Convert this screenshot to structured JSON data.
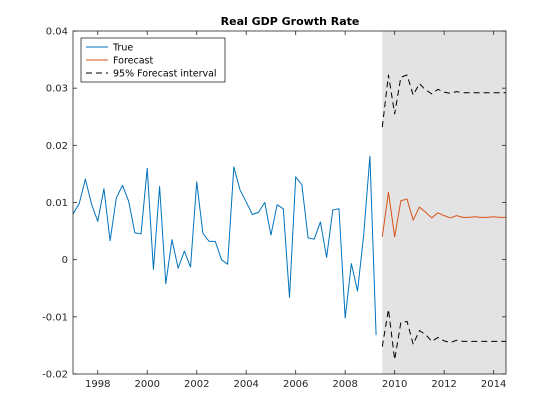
{
  "chart_data": {
    "type": "line",
    "title": "Real GDP Growth Rate",
    "xlabel": "",
    "ylabel": "",
    "xlim": [
      1997.0,
      2014.5
    ],
    "ylim": [
      -0.02,
      0.04
    ],
    "x_ticks": [
      1998,
      2000,
      2002,
      2004,
      2006,
      2008,
      2010,
      2012,
      2014
    ],
    "x_tick_labels": [
      "1998",
      "2000",
      "2002",
      "2004",
      "2006",
      "2008",
      "2010",
      "2012",
      "2014"
    ],
    "y_ticks": [
      -0.02,
      -0.01,
      0,
      0.01,
      0.02,
      0.03,
      0.04
    ],
    "y_tick_labels": [
      "-0.02",
      "-0.01",
      "0",
      "0.01",
      "0.02",
      "0.03",
      "0.04"
    ],
    "grid": false,
    "forecast_region": [
      2009.5,
      2014.5
    ],
    "legend": {
      "position": "top-left",
      "entries": [
        "True",
        "Forecast",
        "95% Forecast interval"
      ]
    },
    "colors": {
      "true": "#0072BD",
      "forecast": "#D95319",
      "interval": "#000000",
      "shade": "#e3e3e3"
    },
    "series": [
      {
        "name": "True",
        "x": [
          1997.0,
          1997.25,
          1997.5,
          1997.75,
          1998.0,
          1998.25,
          1998.5,
          1998.75,
          1999.0,
          1999.25,
          1999.5,
          1999.75,
          2000.0,
          2000.25,
          2000.5,
          2000.75,
          2001.0,
          2001.25,
          2001.5,
          2001.75,
          2002.0,
          2002.25,
          2002.5,
          2002.75,
          2003.0,
          2003.25,
          2003.5,
          2003.75,
          2004.0,
          2004.25,
          2004.5,
          2004.75,
          2005.0,
          2005.25,
          2005.5,
          2005.75,
          2006.0,
          2006.25,
          2006.5,
          2006.75,
          2007.0,
          2007.25,
          2007.5,
          2007.75,
          2008.0,
          2008.25,
          2008.5,
          2008.75,
          2009.0,
          2009.25
        ],
        "y": [
          0.008,
          0.0098,
          0.0141,
          0.0097,
          0.0067,
          0.0124,
          0.0033,
          0.0108,
          0.013,
          0.0102,
          0.0047,
          0.0045,
          0.016,
          -0.0017,
          0.0128,
          -0.0042,
          0.0035,
          -0.0015,
          0.0015,
          -0.0013,
          0.0136,
          0.0046,
          0.0032,
          0.0032,
          0.0,
          -0.0008,
          0.0162,
          0.0122,
          0.0101,
          0.0079,
          0.0083,
          0.01,
          0.0043,
          0.0096,
          0.0089,
          -0.0066,
          0.0145,
          0.0131,
          0.0038,
          0.0036,
          0.0066,
          0.0004,
          0.0087,
          0.0089,
          -0.0102,
          -0.0007,
          -0.0055,
          0.0044,
          0.0181,
          -0.0132
        ]
      },
      {
        "name": "Forecast",
        "x": [
          2009.5,
          2009.75,
          2010.0,
          2010.25,
          2010.5,
          2010.75,
          2011.0,
          2011.25,
          2011.5,
          2011.75,
          2012.0,
          2012.25,
          2012.5,
          2012.75,
          2013.0,
          2013.25,
          2013.5,
          2013.75,
          2014.0,
          2014.25,
          2014.5
        ],
        "y": [
          0.004,
          0.0118,
          0.004,
          0.0103,
          0.0106,
          0.0069,
          0.0092,
          0.0083,
          0.0073,
          0.0082,
          0.0077,
          0.0073,
          0.0077,
          0.0074,
          0.0074,
          0.0075,
          0.0074,
          0.0074,
          0.0075,
          0.0074,
          0.0074
        ]
      },
      {
        "name": "95% Forecast interval (upper)",
        "x": [
          2009.5,
          2009.75,
          2010.0,
          2010.25,
          2010.5,
          2010.75,
          2011.0,
          2011.25,
          2011.5,
          2011.75,
          2012.0,
          2012.25,
          2012.5,
          2012.75,
          2013.0,
          2013.25,
          2013.5,
          2013.75,
          2014.0,
          2014.25,
          2014.5
        ],
        "y": [
          0.0232,
          0.0323,
          0.0255,
          0.0319,
          0.0323,
          0.0288,
          0.0308,
          0.0297,
          0.029,
          0.0298,
          0.0293,
          0.0291,
          0.0294,
          0.0292,
          0.0292,
          0.0292,
          0.0292,
          0.0292,
          0.0292,
          0.0292,
          0.0292
        ]
      },
      {
        "name": "95% Forecast interval (lower)",
        "x": [
          2009.5,
          2009.75,
          2010.0,
          2010.25,
          2010.5,
          2010.75,
          2011.0,
          2011.25,
          2011.5,
          2011.75,
          2012.0,
          2012.25,
          2012.5,
          2012.75,
          2013.0,
          2013.25,
          2013.5,
          2013.75,
          2014.0,
          2014.25,
          2014.5
        ],
        "y": [
          -0.0152,
          -0.0087,
          -0.0175,
          -0.011,
          -0.0108,
          -0.0148,
          -0.0124,
          -0.0131,
          -0.0143,
          -0.0136,
          -0.0142,
          -0.0145,
          -0.0141,
          -0.0143,
          -0.0143,
          -0.0143,
          -0.0143,
          -0.0143,
          -0.0143,
          -0.0143,
          -0.0143
        ]
      }
    ]
  }
}
